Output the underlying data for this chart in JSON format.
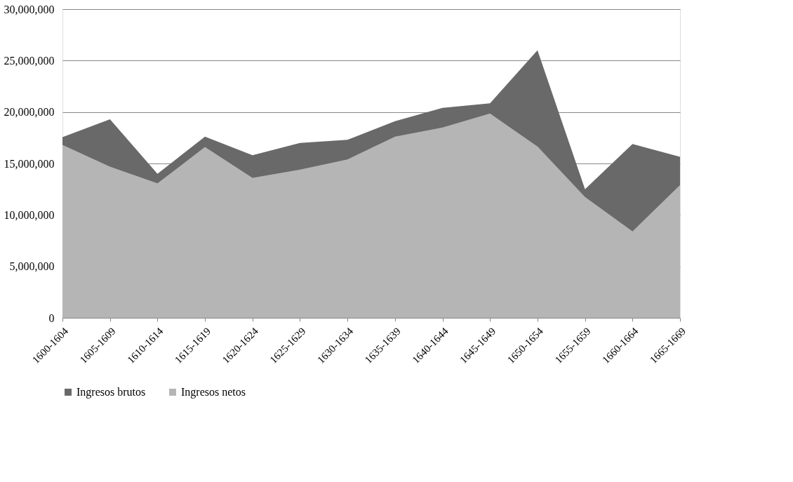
{
  "chart_data": {
    "type": "area",
    "categories": [
      "1600-1604",
      "1605-1609",
      "1610-1614",
      "1615-1619",
      "1620-1624",
      "1625-1629",
      "1630-1634",
      "1635-1639",
      "1640-1644",
      "1645-1649",
      "1650-1654",
      "1655-1659",
      "1660-1664",
      "1665-1669"
    ],
    "series": [
      {
        "name": "Ingresos brutos",
        "color": "#696969",
        "values": [
          17550000,
          19300000,
          14000000,
          17600000,
          15800000,
          17000000,
          17300000,
          19100000,
          20400000,
          20850000,
          26000000,
          12500000,
          16900000,
          15650000
        ]
      },
      {
        "name": "Ingresos netos",
        "color": "#b5b5b5",
        "values": [
          16800000,
          14700000,
          13070000,
          16600000,
          13600000,
          14400000,
          15400000,
          17600000,
          18500000,
          19850000,
          16650000,
          11750000,
          8400000,
          12900000
        ]
      }
    ],
    "ylim": [
      0,
      30000000
    ],
    "yticks": [
      0,
      {
        "value": 5000000,
        "label": "5,000,000"
      },
      {
        "value": 10000000,
        "label": "10,000,000"
      },
      {
        "value": 15000000,
        "label": "15,000,000"
      },
      {
        "value": 20000000,
        "label": "20,000,000"
      },
      {
        "value": 25000000,
        "label": "25,000,000"
      },
      {
        "value": 30000000,
        "label": "30,000,000"
      }
    ],
    "grid": "y",
    "legend": "bottom"
  }
}
